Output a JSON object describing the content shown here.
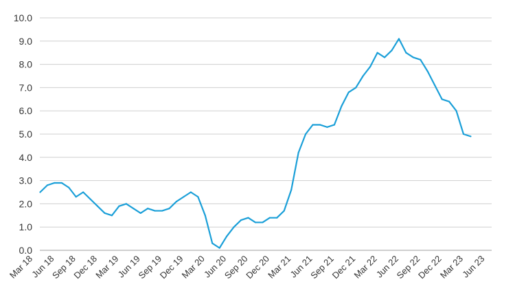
{
  "chart_data": {
    "type": "line",
    "title": "",
    "xlabel": "",
    "ylabel": "",
    "ylim": [
      0,
      10
    ],
    "y_ticks": [
      "0.0",
      "1.0",
      "2.0",
      "3.0",
      "4.0",
      "5.0",
      "6.0",
      "7.0",
      "8.0",
      "9.0",
      "10.0"
    ],
    "x_ticks": [
      "Mar 18",
      "Jun 18",
      "Sep 18",
      "Dec 18",
      "Mar 19",
      "Jun 19",
      "Sep 19",
      "Dec 19",
      "Mar 20",
      "Jun 20",
      "Sep 20",
      "Dec 20",
      "Mar 21",
      "Jun 21",
      "Sep 21",
      "Dec 21",
      "Mar 22",
      "Jun 22",
      "Sep 22",
      "Dec 22",
      "Mar 23",
      "Jun 23"
    ],
    "grid": "horizontal",
    "line_color": "#1a9fd8",
    "x": [
      "Apr 18",
      "May 18",
      "Jun 18",
      "Jul 18",
      "Aug 18",
      "Sep 18",
      "Oct 18",
      "Nov 18",
      "Dec 18",
      "Jan 19",
      "Feb 19",
      "Mar 19",
      "Apr 19",
      "May 19",
      "Jun 19",
      "Jul 19",
      "Aug 19",
      "Sep 19",
      "Oct 19",
      "Nov 19",
      "Dec 19",
      "Jan 20",
      "Feb 20",
      "Mar 20",
      "Apr 20",
      "May 20",
      "Jun 20",
      "Jul 20",
      "Aug 20",
      "Sep 20",
      "Oct 20",
      "Nov 20",
      "Dec 20",
      "Jan 21",
      "Feb 21",
      "Mar 21",
      "Apr 21",
      "May 21",
      "Jun 21",
      "Jul 21",
      "Aug 21",
      "Sep 21",
      "Oct 21",
      "Nov 21",
      "Dec 21",
      "Jan 22",
      "Feb 22",
      "Mar 22",
      "Apr 22",
      "May 22",
      "Jun 22",
      "Jul 22",
      "Aug 22",
      "Sep 22",
      "Oct 22",
      "Nov 22",
      "Dec 22",
      "Jan 23",
      "Feb 23",
      "Mar 23",
      "Apr 23"
    ],
    "values": [
      2.5,
      2.8,
      2.9,
      2.9,
      2.7,
      2.3,
      2.5,
      2.2,
      1.9,
      1.6,
      1.5,
      1.9,
      2.0,
      1.8,
      1.6,
      1.8,
      1.7,
      1.7,
      1.8,
      2.1,
      2.3,
      2.5,
      2.3,
      1.5,
      0.3,
      0.1,
      0.6,
      1.0,
      1.3,
      1.4,
      1.2,
      1.2,
      1.4,
      1.4,
      1.7,
      2.6,
      4.2,
      5.0,
      5.4,
      5.4,
      5.3,
      5.4,
      6.2,
      6.8,
      7.0,
      7.5,
      7.9,
      8.5,
      8.3,
      8.6,
      9.1,
      8.5,
      8.3,
      8.2,
      7.7,
      7.1,
      6.5,
      6.4,
      6.0,
      5.0,
      4.9
    ]
  }
}
